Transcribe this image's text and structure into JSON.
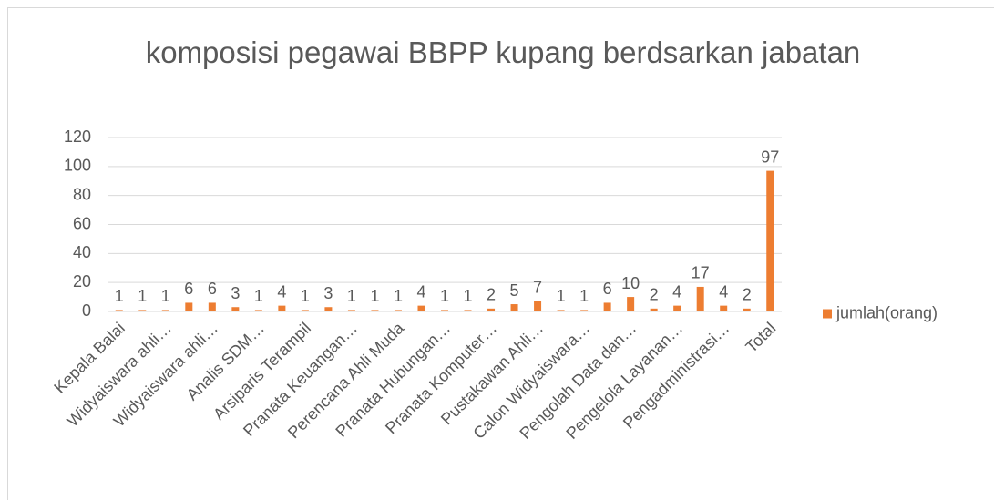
{
  "chart_data": {
    "type": "bar",
    "title": "komposisi pegawai BBPP kupang berdsarkan jabatan",
    "categories": [
      "Kepala Balai",
      null,
      "Widyaiswara ahli…",
      null,
      "Widyaiswara ahli…",
      null,
      "Analis SDM…",
      null,
      "Arsiparis Terampil",
      null,
      "Pranata Keuangan…",
      null,
      "Perencana Ahli Muda",
      null,
      "Pranata Hubungan…",
      null,
      "Pranata Komputer…",
      null,
      "Pustakawan Ahli…",
      null,
      "Calon Widyaiswara…",
      null,
      "Pengolah Data dan…",
      null,
      "Pengelola Layanan…",
      null,
      "Pengadministrasi…",
      null,
      "Total"
    ],
    "series": [
      {
        "name": "jumlah(orang)",
        "color": "#ED7D31",
        "values": [
          1,
          1,
          1,
          6,
          6,
          3,
          1,
          4,
          1,
          3,
          1,
          1,
          1,
          4,
          1,
          1,
          2,
          5,
          7,
          1,
          1,
          6,
          10,
          2,
          4,
          17,
          4,
          2,
          97
        ]
      }
    ],
    "ylim": [
      0,
      120
    ],
    "yticks": [
      0,
      20,
      40,
      60,
      80,
      100,
      120
    ],
    "grid": true,
    "legend": "right"
  }
}
